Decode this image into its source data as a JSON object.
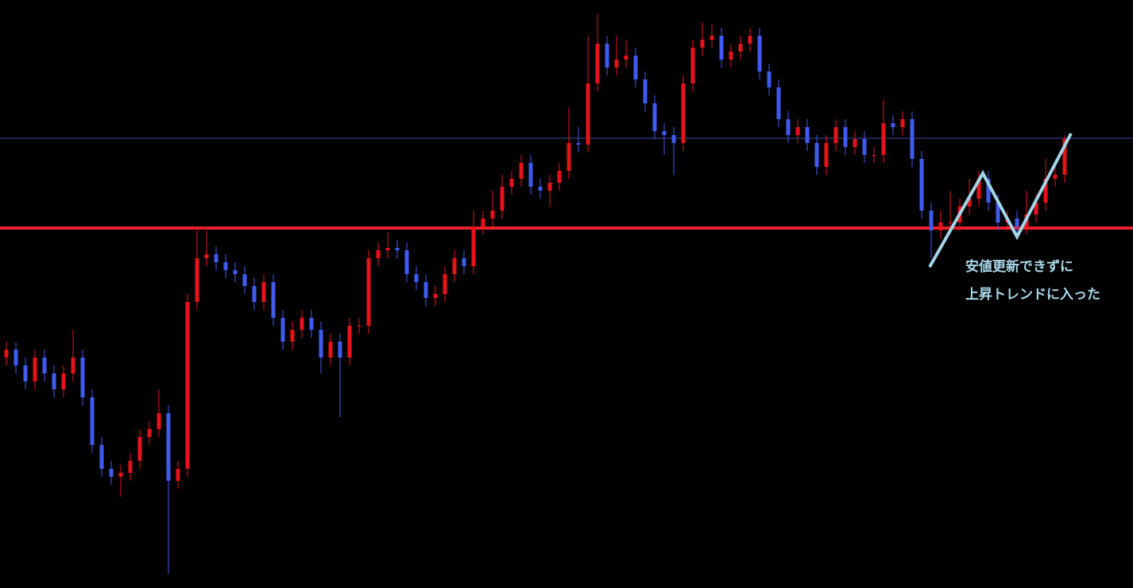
{
  "chart_data": {
    "type": "candlestick",
    "ylim": [
      0,
      740
    ],
    "up_color": "#e8121b",
    "down_color": "#3f5bf0",
    "open": [
      290,
      300,
      280,
      260,
      290,
      270,
      250,
      270,
      290,
      240,
      180,
      150,
      140,
      145,
      160,
      190,
      200,
      220,
      135,
      150,
      360,
      415,
      420,
      410,
      400,
      395,
      380,
      360,
      385,
      340,
      310,
      325,
      340,
      325,
      290,
      310,
      290,
      330,
      330,
      415,
      425,
      428,
      425,
      395,
      385,
      365,
      370,
      395,
      415,
      405,
      455,
      465,
      475,
      505,
      515,
      535,
      505,
      500,
      510,
      525,
      560,
      558,
      635,
      685,
      655,
      665,
      670,
      640,
      610,
      575,
      570,
      560,
      635,
      680,
      690,
      695,
      665,
      675,
      685,
      695,
      650,
      630,
      590,
      570,
      580,
      560,
      530,
      560,
      580,
      555,
      565,
      545,
      545,
      585,
      580,
      590,
      540,
      475,
      450,
      460,
      460,
      480,
      490,
      515,
      485,
      460,
      465,
      455,
      470,
      485,
      515,
      520
    ],
    "high": [
      310,
      310,
      290,
      300,
      300,
      280,
      280,
      325,
      300,
      250,
      190,
      160,
      155,
      170,
      200,
      210,
      250,
      230,
      160,
      370,
      450,
      450,
      430,
      420,
      410,
      405,
      390,
      395,
      395,
      350,
      335,
      350,
      350,
      335,
      320,
      320,
      340,
      340,
      425,
      435,
      448,
      438,
      435,
      405,
      395,
      380,
      405,
      425,
      425,
      475,
      475,
      500,
      520,
      525,
      545,
      545,
      515,
      520,
      535,
      605,
      580,
      695,
      722,
      695,
      695,
      690,
      680,
      650,
      620,
      585,
      580,
      645,
      690,
      712,
      710,
      705,
      685,
      695,
      705,
      705,
      660,
      640,
      600,
      590,
      590,
      570,
      570,
      590,
      590,
      575,
      575,
      555,
      615,
      595,
      600,
      600,
      550,
      485,
      475,
      500,
      490,
      515,
      525,
      525,
      495,
      475,
      475,
      500,
      495,
      540,
      535,
      570
    ],
    "low": [
      280,
      270,
      250,
      250,
      260,
      240,
      240,
      260,
      230,
      170,
      140,
      130,
      115,
      135,
      150,
      180,
      190,
      18,
      125,
      140,
      350,
      405,
      400,
      390,
      385,
      370,
      350,
      350,
      330,
      300,
      300,
      315,
      315,
      270,
      280,
      215,
      280,
      320,
      320,
      405,
      415,
      415,
      385,
      375,
      355,
      355,
      360,
      385,
      395,
      395,
      445,
      455,
      465,
      495,
      505,
      495,
      490,
      480,
      500,
      515,
      548,
      548,
      625,
      645,
      645,
      655,
      630,
      600,
      565,
      545,
      520,
      550,
      625,
      670,
      680,
      655,
      655,
      665,
      675,
      640,
      620,
      580,
      560,
      560,
      550,
      520,
      520,
      550,
      545,
      545,
      535,
      535,
      535,
      570,
      570,
      530,
      465,
      415,
      440,
      450,
      450,
      470,
      480,
      475,
      450,
      450,
      445,
      445,
      460,
      475,
      505,
      510
    ],
    "close": [
      300,
      280,
      260,
      290,
      270,
      250,
      270,
      290,
      240,
      180,
      150,
      140,
      145,
      160,
      190,
      200,
      220,
      135,
      150,
      360,
      415,
      420,
      410,
      400,
      395,
      380,
      360,
      385,
      340,
      310,
      325,
      340,
      325,
      290,
      310,
      290,
      330,
      330,
      415,
      425,
      428,
      425,
      395,
      385,
      365,
      370,
      395,
      415,
      405,
      455,
      465,
      475,
      505,
      515,
      535,
      505,
      500,
      510,
      525,
      560,
      558,
      635,
      685,
      655,
      665,
      670,
      640,
      610,
      575,
      570,
      560,
      635,
      680,
      690,
      695,
      665,
      675,
      685,
      695,
      650,
      630,
      590,
      570,
      580,
      560,
      530,
      560,
      580,
      555,
      565,
      545,
      545,
      585,
      580,
      590,
      540,
      475,
      450,
      460,
      460,
      480,
      490,
      515,
      485,
      460,
      465,
      455,
      470,
      485,
      515,
      520,
      565
    ],
    "hlines": [
      {
        "value": 566,
        "color": "#3a4a9a"
      },
      {
        "value": 453,
        "color": "#e8202a"
      }
    ],
    "annotations": [
      "安値更新できずに",
      "上昇トレンドに入った"
    ]
  }
}
